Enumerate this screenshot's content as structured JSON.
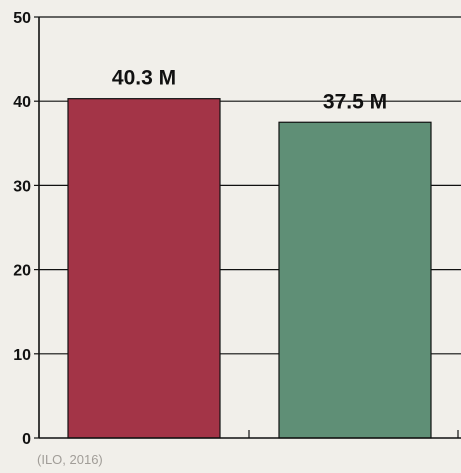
{
  "chart_data": {
    "type": "bar",
    "categories": [
      "",
      ""
    ],
    "values": [
      40.3,
      37.5
    ],
    "data_labels": [
      "40.3 M",
      "37.5 M"
    ],
    "colors": [
      "#a33447",
      "#5f8f76"
    ],
    "title": "",
    "xlabel": "",
    "ylabel": "",
    "ylim": [
      0,
      50
    ],
    "yticks": [
      0,
      10,
      20,
      30,
      40,
      50
    ],
    "grid": true,
    "legend": "none"
  },
  "source": "(ILO, 2016)"
}
